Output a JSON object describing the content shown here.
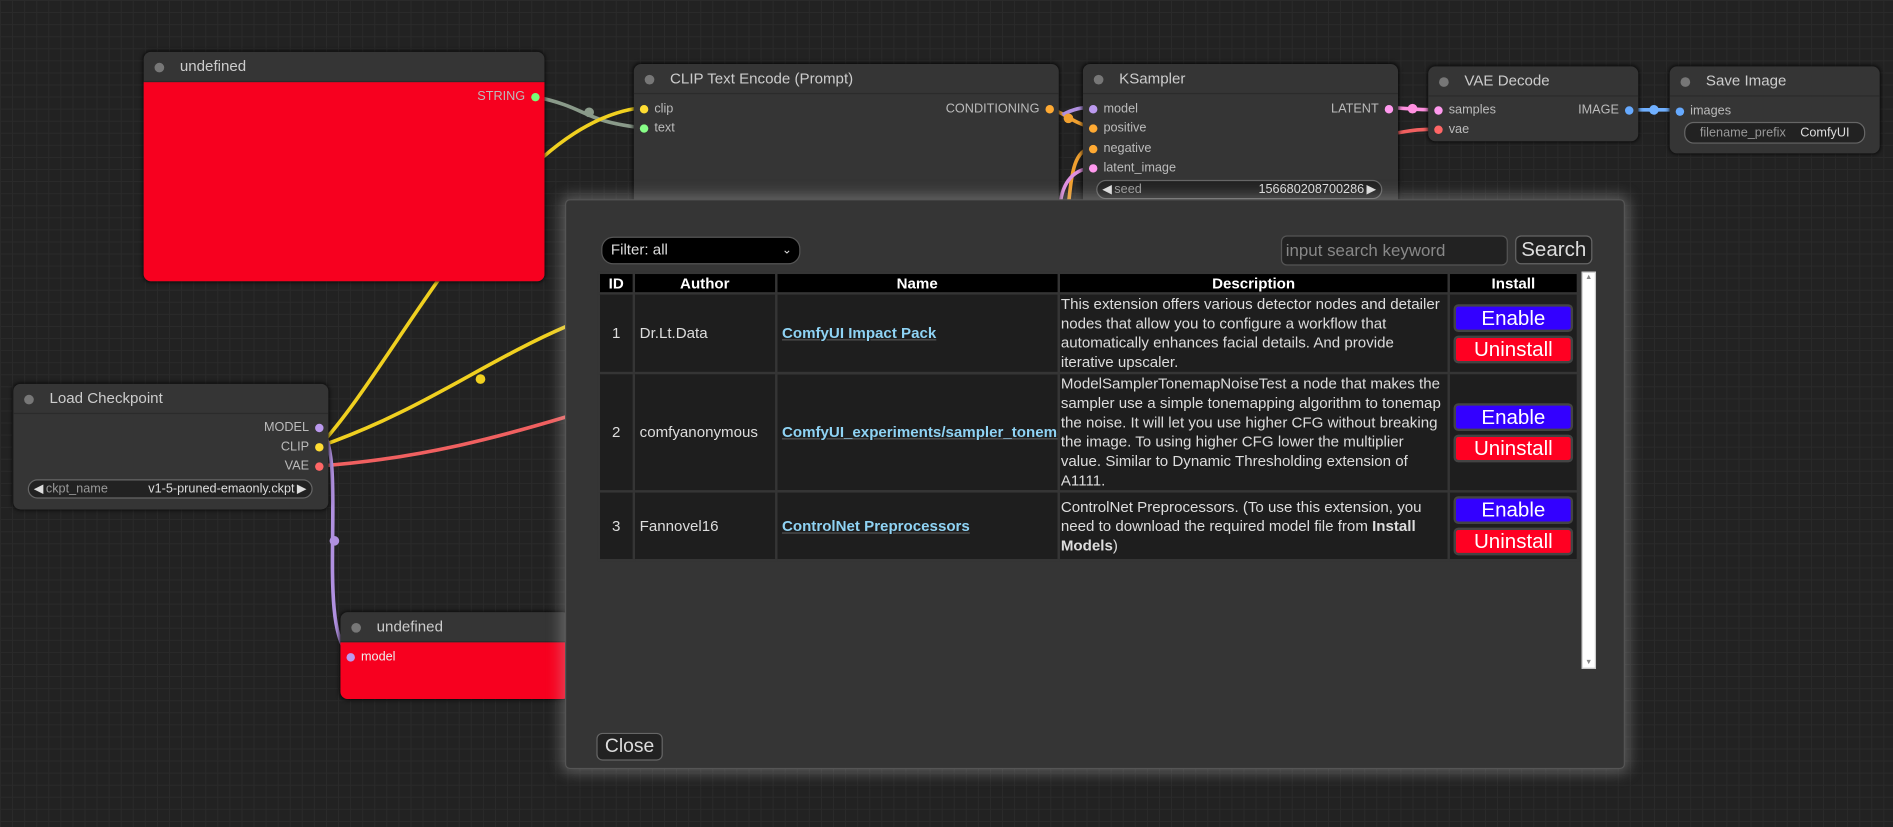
{
  "nodes": {
    "undefined_top": {
      "title": "undefined",
      "output": "STRING"
    },
    "clip": {
      "title": "CLIP Text Encode (Prompt)",
      "inputs": [
        "clip",
        "text"
      ],
      "output": "CONDITIONING"
    },
    "ksampler": {
      "title": "KSampler",
      "inputs": [
        "model",
        "positive",
        "negative",
        "latent_image"
      ],
      "output": "LATENT",
      "seed_label": "seed",
      "seed_value": "156680208700286"
    },
    "vae": {
      "title": "VAE Decode",
      "inputs": [
        "samples",
        "vae"
      ],
      "output": "IMAGE"
    },
    "save": {
      "title": "Save Image",
      "input": "images",
      "widget_label": "filename_prefix",
      "widget_value": "ComfyUI"
    },
    "checkpoint": {
      "title": "Load Checkpoint",
      "outputs": [
        "MODEL",
        "CLIP",
        "VAE"
      ],
      "widget_label": "ckpt_name",
      "widget_value": "v1-5-pruned-emaonly.ckpt"
    },
    "undefined_bottom": {
      "title": "undefined",
      "input": "model"
    }
  },
  "colors": {
    "node_body_red": "#f7001f",
    "enable": "#3300ff",
    "uninstall": "#ff0022",
    "link": "#8fd3f4"
  },
  "dialog": {
    "filter": "Filter: all",
    "search_placeholder": "input search keyword",
    "search_button": "Search",
    "close_button": "Close",
    "columns": [
      "ID",
      "Author",
      "Name",
      "Description",
      "Install"
    ],
    "rows": [
      {
        "id": "1",
        "author": "Dr.Lt.Data",
        "name": "ComfyUI Impact Pack",
        "description": "This extension offers various detector nodes and detailer nodes that allow you to configure a workflow that automatically enhances facial details. And provide iterative upscaler.",
        "enable": "Enable",
        "uninstall": "Uninstall"
      },
      {
        "id": "2",
        "author": "comfyanonymous",
        "name": "ComfyUI_experiments/sampler_tonemap",
        "description": "ModelSamplerTonemapNoiseTest a node that makes the sampler use a simple tonemapping algorithm to tonemap the noise. It will let you use higher CFG without breaking the image. To using higher CFG lower the multiplier value. Similar to Dynamic Thresholding extension of A1111.",
        "enable": "Enable",
        "uninstall": "Uninstall"
      },
      {
        "id": "3",
        "author": "Fannovel16",
        "name": "ControlNet Preprocessors",
        "description_pre": "ControlNet Preprocessors. (To use this extension, you need to download the required model file from ",
        "description_bold": "Install Models",
        "description_post": ")",
        "enable": "Enable",
        "uninstall": "Uninstall"
      }
    ]
  }
}
